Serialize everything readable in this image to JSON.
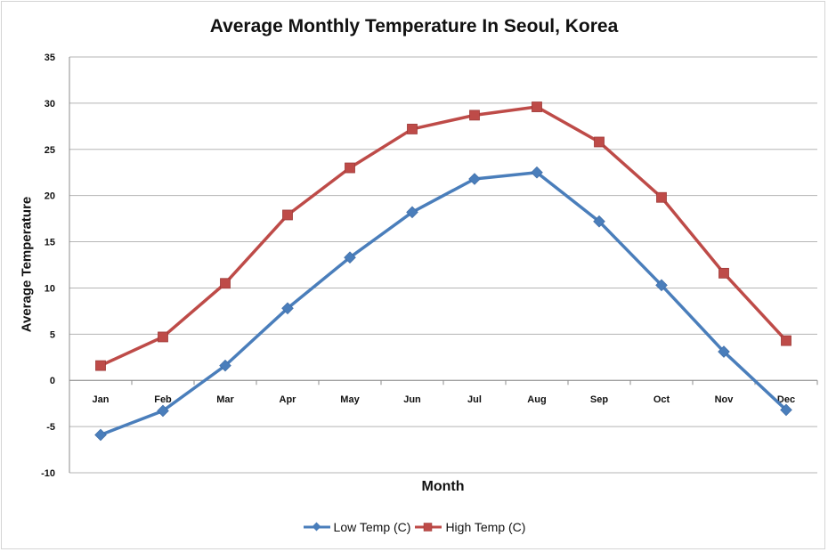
{
  "chart_data": {
    "type": "line",
    "title": "Average Monthly Temperature In Seoul, Korea",
    "xlabel": "Month",
    "ylabel": "Average Temperature",
    "categories": [
      "Jan",
      "Feb",
      "Mar",
      "Apr",
      "May",
      "Jun",
      "Jul",
      "Aug",
      "Sep",
      "Oct",
      "Nov",
      "Dec"
    ],
    "ylim": [
      -10,
      35
    ],
    "yticks": [
      "-10",
      "-5",
      "0",
      "5",
      "10",
      "15",
      "20",
      "25",
      "30",
      "35"
    ],
    "grid": true,
    "legend_position": "bottom",
    "series": [
      {
        "name": "Low Temp (C)",
        "color": "#4a7ebb",
        "marker": "diamond",
        "values": [
          -5.9,
          -3.3,
          1.6,
          7.8,
          13.3,
          18.2,
          21.8,
          22.5,
          17.2,
          10.3,
          3.1,
          -3.2
        ]
      },
      {
        "name": "High Temp (C)",
        "color": "#be4b48",
        "marker": "square",
        "values": [
          1.6,
          4.7,
          10.5,
          17.9,
          23.0,
          27.2,
          28.7,
          29.6,
          25.8,
          19.8,
          11.6,
          4.3
        ]
      }
    ]
  }
}
